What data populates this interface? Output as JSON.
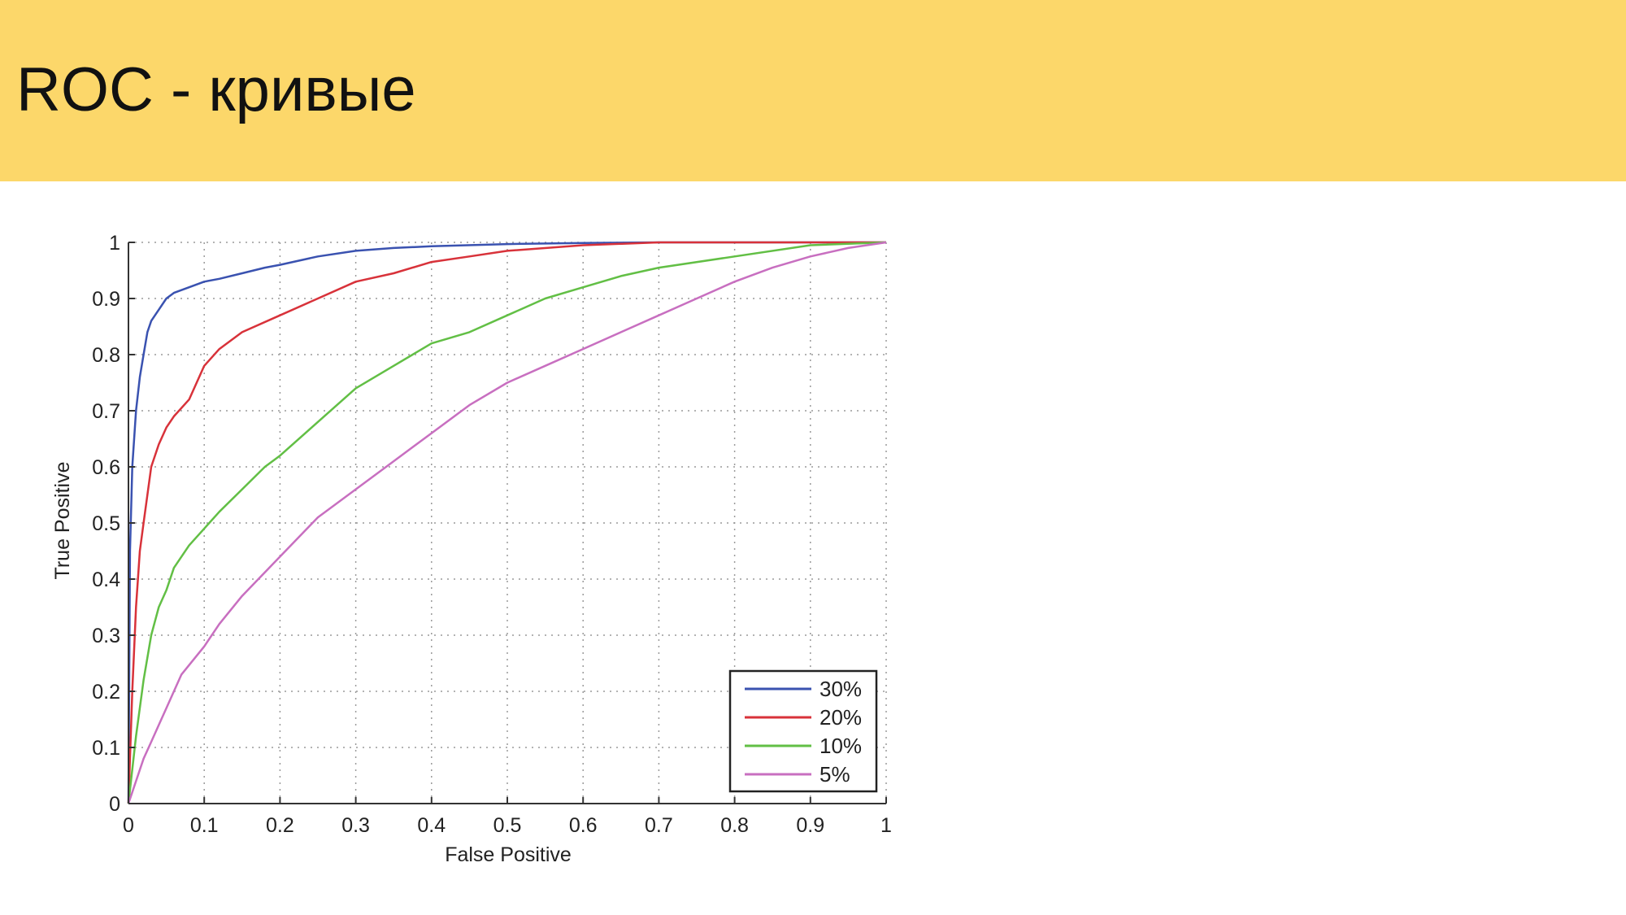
{
  "slide": {
    "title": "ROC - кривые",
    "header_color": "#fcd76a"
  },
  "chart_data": {
    "type": "line",
    "title": "",
    "xlabel": "False Positive",
    "ylabel": "True Positive",
    "xlim": [
      0,
      1
    ],
    "ylim": [
      0,
      1
    ],
    "xticks": [
      0,
      0.1,
      0.2,
      0.3,
      0.4,
      0.5,
      0.6,
      0.7,
      0.8,
      0.9,
      1
    ],
    "yticks": [
      0,
      0.1,
      0.2,
      0.3,
      0.4,
      0.5,
      0.6,
      0.7,
      0.8,
      0.9,
      1
    ],
    "xtick_labels": [
      "0",
      "0.1",
      "0.2",
      "0.3",
      "0.4",
      "0.5",
      "0.6",
      "0.7",
      "0.8",
      "0.9",
      "1"
    ],
    "ytick_labels": [
      "0",
      "0.1",
      "0.2",
      "0.3",
      "0.4",
      "0.5",
      "0.6",
      "0.7",
      "0.8",
      "0.9",
      "1"
    ],
    "grid": true,
    "grid_style": "dotted",
    "legend_position": "bottom-right",
    "series": [
      {
        "name": "30%",
        "color": "#3a52b0",
        "x": [
          0,
          0.002,
          0.005,
          0.01,
          0.015,
          0.02,
          0.025,
          0.03,
          0.04,
          0.05,
          0.06,
          0.08,
          0.1,
          0.12,
          0.15,
          0.18,
          0.2,
          0.25,
          0.3,
          0.35,
          0.4,
          0.5,
          0.6,
          0.7,
          0.8,
          0.9,
          1
        ],
        "y": [
          0,
          0.45,
          0.6,
          0.7,
          0.76,
          0.8,
          0.84,
          0.86,
          0.88,
          0.9,
          0.91,
          0.92,
          0.93,
          0.935,
          0.945,
          0.955,
          0.96,
          0.975,
          0.985,
          0.99,
          0.993,
          0.997,
          0.999,
          1,
          1,
          1,
          1
        ]
      },
      {
        "name": "20%",
        "color": "#d8323a",
        "x": [
          0,
          0.005,
          0.01,
          0.015,
          0.02,
          0.025,
          0.03,
          0.04,
          0.05,
          0.06,
          0.08,
          0.09,
          0.1,
          0.12,
          0.15,
          0.2,
          0.25,
          0.3,
          0.35,
          0.4,
          0.45,
          0.5,
          0.6,
          0.7,
          0.8,
          0.9,
          1
        ],
        "y": [
          0,
          0.2,
          0.35,
          0.45,
          0.5,
          0.55,
          0.6,
          0.64,
          0.67,
          0.69,
          0.72,
          0.75,
          0.78,
          0.81,
          0.84,
          0.87,
          0.9,
          0.93,
          0.945,
          0.965,
          0.975,
          0.985,
          0.995,
          1,
          1,
          1,
          1
        ]
      },
      {
        "name": "10%",
        "color": "#62bf45",
        "x": [
          0,
          0.01,
          0.02,
          0.03,
          0.04,
          0.05,
          0.06,
          0.08,
          0.1,
          0.12,
          0.15,
          0.18,
          0.2,
          0.25,
          0.3,
          0.35,
          0.4,
          0.45,
          0.5,
          0.55,
          0.6,
          0.65,
          0.7,
          0.8,
          0.9,
          1
        ],
        "y": [
          0,
          0.12,
          0.22,
          0.3,
          0.35,
          0.38,
          0.42,
          0.46,
          0.49,
          0.52,
          0.56,
          0.6,
          0.62,
          0.68,
          0.74,
          0.78,
          0.82,
          0.84,
          0.87,
          0.9,
          0.92,
          0.94,
          0.955,
          0.975,
          0.995,
          1
        ]
      },
      {
        "name": "5%",
        "color": "#c86fc0",
        "x": [
          0,
          0.01,
          0.02,
          0.03,
          0.05,
          0.07,
          0.1,
          0.12,
          0.15,
          0.2,
          0.25,
          0.3,
          0.35,
          0.4,
          0.45,
          0.5,
          0.55,
          0.6,
          0.65,
          0.7,
          0.75,
          0.8,
          0.85,
          0.9,
          0.95,
          1
        ],
        "y": [
          0,
          0.04,
          0.08,
          0.11,
          0.17,
          0.23,
          0.28,
          0.32,
          0.37,
          0.44,
          0.51,
          0.56,
          0.61,
          0.66,
          0.71,
          0.75,
          0.78,
          0.81,
          0.84,
          0.87,
          0.9,
          0.93,
          0.955,
          0.975,
          0.99,
          1
        ]
      }
    ]
  }
}
